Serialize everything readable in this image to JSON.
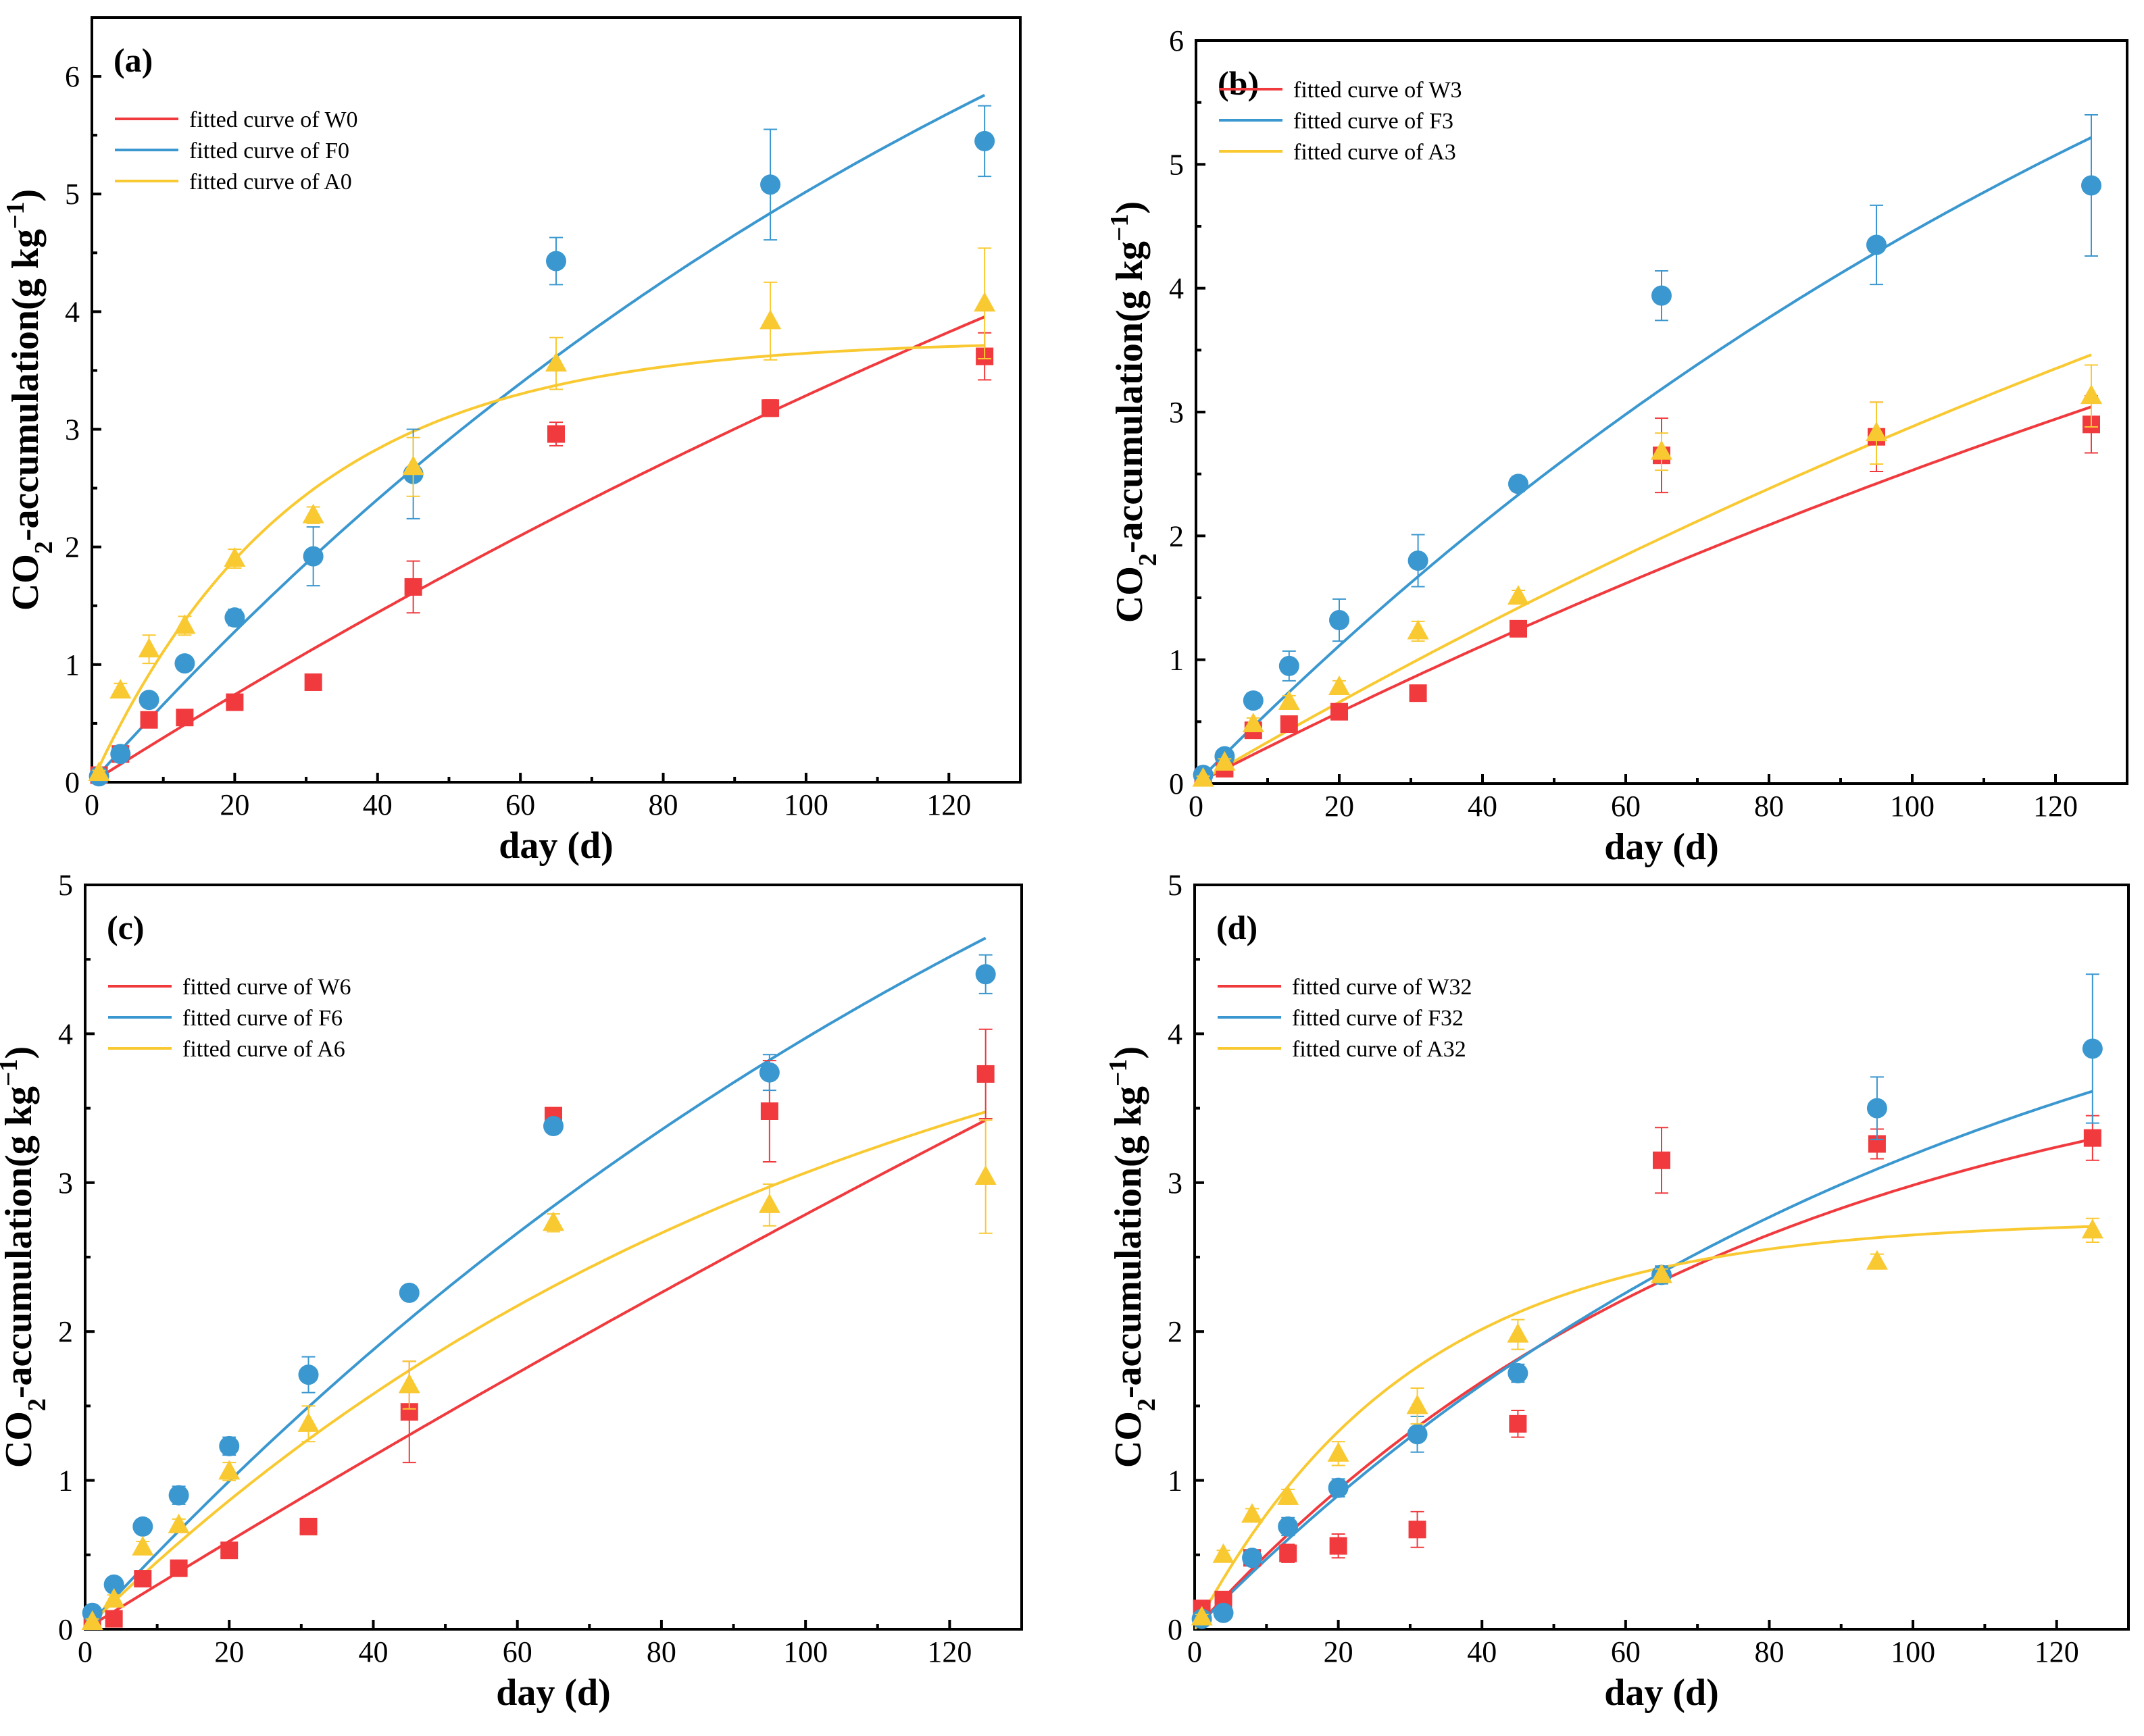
{
  "chart_data": [
    {
      "type": "scatter",
      "panel_label": "(a)",
      "xlabel": "day (d)",
      "ylabel": "CO2-accumulation(g kg−1)",
      "ylabel_parts": {
        "pre": "CO",
        "sub": "2",
        "mid": "-accumulation(g kg",
        "sup": "−1",
        "post": ")"
      },
      "xlim": [
        0,
        130
      ],
      "ylim": [
        0,
        6.5
      ],
      "xticks": [
        0,
        20,
        40,
        60,
        80,
        100,
        120
      ],
      "yticks": [
        0,
        1,
        2,
        3,
        4,
        5,
        6
      ],
      "legend": [
        "fitted curve of W0",
        "fitted curve of F0",
        "fitted curve of A0"
      ],
      "series": [
        {
          "name": "W0",
          "color": "#f03a3e",
          "marker": "square",
          "x": [
            1,
            4,
            8,
            13,
            20,
            31,
            45,
            65,
            95,
            125
          ],
          "y": [
            0.06,
            0.24,
            0.53,
            0.55,
            0.68,
            0.85,
            1.66,
            2.96,
            3.18,
            3.62
          ],
          "err": [
            0.02,
            0.03,
            0.05,
            0.03,
            0.04,
            0.04,
            0.22,
            0.1,
            0.07,
            0.2
          ],
          "fit": {
            "a": 12.0,
            "k": 0.0032
          }
        },
        {
          "name": "F0",
          "color": "#3a97cf",
          "marker": "circle",
          "x": [
            1,
            4,
            8,
            13,
            20,
            31,
            45,
            65,
            95,
            125
          ],
          "y": [
            0.05,
            0.24,
            0.7,
            1.01,
            1.4,
            1.92,
            2.62,
            4.43,
            5.08,
            5.45
          ],
          "err": [
            0.02,
            0.03,
            0.05,
            0.05,
            0.07,
            0.25,
            0.38,
            0.2,
            0.47,
            0.3
          ],
          "fit": {
            "a": 10.5,
            "k": 0.0065
          }
        },
        {
          "name": "A0",
          "color": "#f9c932",
          "marker": "triangle",
          "x": [
            1,
            4,
            8,
            13,
            20,
            31,
            45,
            65,
            95,
            125
          ],
          "y": [
            0.08,
            0.78,
            1.13,
            1.33,
            1.9,
            2.27,
            2.68,
            3.56,
            3.92,
            4.07
          ],
          "err": [
            0.02,
            0.06,
            0.12,
            0.08,
            0.08,
            0.07,
            0.25,
            0.22,
            0.33,
            0.47
          ],
          "fit": {
            "a": 3.76,
            "k": 0.035
          }
        }
      ]
    },
    {
      "type": "scatter",
      "panel_label": "(b)",
      "xlabel": "day (d)",
      "ylabel": "CO2-accumulation(g kg−1)",
      "ylabel_parts": {
        "pre": "CO",
        "sub": "2",
        "mid": "-accumulation(g kg",
        "sup": "−1",
        "post": ")"
      },
      "xlim": [
        0,
        130
      ],
      "ylim": [
        0,
        6
      ],
      "xticks": [
        0,
        20,
        40,
        60,
        80,
        100,
        120
      ],
      "yticks": [
        0,
        1,
        2,
        3,
        4,
        5,
        6
      ],
      "legend": [
        "fitted curve of W3",
        "fitted curve of F3",
        "fitted curve of A3"
      ],
      "series": [
        {
          "name": "W3",
          "color": "#f03a3e",
          "marker": "square",
          "x": [
            1,
            4,
            8,
            13,
            20,
            31,
            45,
            65,
            95,
            125
          ],
          "y": [
            0.05,
            0.12,
            0.43,
            0.48,
            0.58,
            0.73,
            1.25,
            2.65,
            2.8,
            2.9
          ],
          "err": [
            0.02,
            0.03,
            0.04,
            0.04,
            0.04,
            0.04,
            0.05,
            0.3,
            0.28,
            0.23
          ],
          "fit": {
            "a": 9.0,
            "k": 0.0033
          }
        },
        {
          "name": "F3",
          "color": "#3a97cf",
          "marker": "circle",
          "x": [
            1,
            4,
            8,
            13,
            20,
            31,
            45,
            65,
            95,
            125
          ],
          "y": [
            0.07,
            0.22,
            0.67,
            0.95,
            1.32,
            1.8,
            2.42,
            3.94,
            4.35,
            4.83
          ],
          "err": [
            0.02,
            0.03,
            0.06,
            0.12,
            0.17,
            0.21,
            0.06,
            0.2,
            0.32,
            0.57
          ],
          "fit": {
            "a": 10.0,
            "k": 0.0059
          }
        },
        {
          "name": "A3",
          "color": "#f9c932",
          "marker": "triangle",
          "x": [
            1,
            4,
            8,
            13,
            20,
            31,
            45,
            65,
            95,
            125
          ],
          "y": [
            0.04,
            0.17,
            0.48,
            0.66,
            0.78,
            1.23,
            1.51,
            2.68,
            2.83,
            3.13
          ],
          "err": [
            0.02,
            0.03,
            0.05,
            0.05,
            0.05,
            0.08,
            0.05,
            0.15,
            0.25,
            0.25
          ],
          "fit": {
            "a": 10.0,
            "k": 0.0034
          }
        }
      ]
    },
    {
      "type": "scatter",
      "panel_label": "(c)",
      "xlabel": "day (d)",
      "ylabel": "CO2-accumulation(g kg−1)",
      "ylabel_parts": {
        "pre": "CO",
        "sub": "2",
        "mid": "-accumulation(g kg",
        "sup": "−1",
        "post": ")"
      },
      "xlim": [
        0,
        130
      ],
      "ylim": [
        0,
        5
      ],
      "xticks": [
        0,
        20,
        40,
        60,
        80,
        100,
        120
      ],
      "yticks": [
        0,
        1,
        2,
        3,
        4,
        5
      ],
      "legend": [
        "fitted curve of W6",
        "fitted curve of F6",
        "fitted curve of A6"
      ],
      "series": [
        {
          "name": "W6",
          "color": "#f03a3e",
          "marker": "square",
          "x": [
            1,
            4,
            8,
            13,
            20,
            31,
            45,
            65,
            95,
            125
          ],
          "y": [
            0.06,
            0.07,
            0.34,
            0.41,
            0.53,
            0.69,
            1.46,
            3.45,
            3.48,
            3.73
          ],
          "err": [
            0.02,
            0.02,
            0.03,
            0.03,
            0.04,
            0.04,
            0.34,
            0.05,
            0.34,
            0.3
          ],
          "fit": {
            "a": 20.0,
            "k": 0.0015
          }
        },
        {
          "name": "F6",
          "color": "#3a97cf",
          "marker": "circle",
          "x": [
            1,
            4,
            8,
            13,
            20,
            31,
            45,
            65,
            95,
            125
          ],
          "y": [
            0.11,
            0.3,
            0.69,
            0.9,
            1.23,
            1.71,
            2.26,
            3.38,
            3.74,
            4.4
          ],
          "err": [
            0.02,
            0.03,
            0.04,
            0.06,
            0.06,
            0.12,
            0.04,
            0.04,
            0.12,
            0.13
          ],
          "fit": {
            "a": 8.8,
            "k": 0.006
          }
        },
        {
          "name": "A6",
          "color": "#f9c932",
          "marker": "triangle",
          "x": [
            1,
            4,
            8,
            13,
            20,
            31,
            45,
            65,
            95,
            125
          ],
          "y": [
            0.05,
            0.2,
            0.55,
            0.7,
            1.06,
            1.38,
            1.64,
            2.73,
            2.85,
            3.04
          ],
          "err": [
            0.02,
            0.03,
            0.04,
            0.04,
            0.06,
            0.12,
            0.16,
            0.06,
            0.14,
            0.38
          ],
          "fit": {
            "a": 5.0,
            "k": 0.0095
          }
        }
      ]
    },
    {
      "type": "scatter",
      "panel_label": "(d)",
      "xlabel": "day (d)",
      "ylabel": "CO2-accumulation(g kg−1)",
      "ylabel_parts": {
        "pre": "CO",
        "sub": "2",
        "mid": "-accumulation(g kg",
        "sup": "−1",
        "post": ")"
      },
      "xlim": [
        0,
        130
      ],
      "ylim": [
        0,
        5
      ],
      "xticks": [
        0,
        20,
        40,
        60,
        80,
        100,
        120
      ],
      "yticks": [
        0,
        1,
        2,
        3,
        4,
        5
      ],
      "legend": [
        "fitted curve of W32",
        "fitted curve of F32",
        "fitted curve of A32"
      ],
      "series": [
        {
          "name": "W32",
          "color": "#f03a3e",
          "marker": "square",
          "x": [
            1,
            4,
            8,
            13,
            20,
            31,
            45,
            65,
            95,
            125
          ],
          "y": [
            0.14,
            0.2,
            0.48,
            0.51,
            0.56,
            0.67,
            1.38,
            3.15,
            3.26,
            3.3
          ],
          "err": [
            0.02,
            0.03,
            0.04,
            0.06,
            0.08,
            0.12,
            0.09,
            0.22,
            0.1,
            0.15
          ],
          "fit": {
            "a": 4.1,
            "k": 0.013
          }
        },
        {
          "name": "F32",
          "color": "#3a97cf",
          "marker": "circle",
          "x": [
            1,
            4,
            8,
            13,
            20,
            31,
            45,
            65,
            95,
            125
          ],
          "y": [
            0.07,
            0.11,
            0.48,
            0.69,
            0.95,
            1.31,
            1.72,
            2.38,
            3.5,
            3.9
          ],
          "err": [
            0.02,
            0.03,
            0.04,
            0.06,
            0.06,
            0.12,
            0.06,
            0.06,
            0.21,
            0.5
          ],
          "fit": {
            "a": 5.2,
            "k": 0.0095
          }
        },
        {
          "name": "A32",
          "color": "#f9c932",
          "marker": "triangle",
          "x": [
            1,
            4,
            8,
            13,
            20,
            31,
            45,
            65,
            95,
            125
          ],
          "y": [
            0.08,
            0.5,
            0.77,
            0.89,
            1.18,
            1.5,
            1.98,
            2.38,
            2.47,
            2.68
          ],
          "err": [
            0.02,
            0.03,
            0.04,
            0.05,
            0.08,
            0.12,
            0.1,
            0.04,
            0.05,
            0.08
          ],
          "fit": {
            "a": 2.75,
            "k": 0.033
          }
        }
      ]
    }
  ]
}
